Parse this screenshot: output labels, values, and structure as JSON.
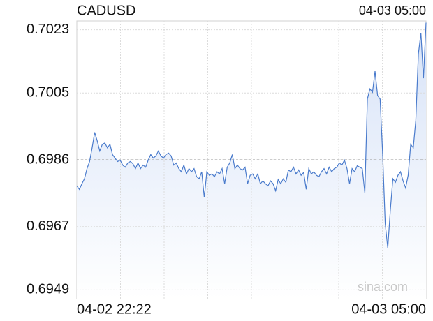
{
  "chart_data": {
    "type": "line",
    "title": "CADUSD",
    "timestamp": "04-03 05:00",
    "watermark": "sina.com",
    "categories": [
      "04-02 22:22",
      null,
      null,
      null,
      null,
      null,
      null,
      null,
      null,
      null,
      null,
      null,
      null,
      null,
      null,
      null,
      null,
      null,
      null,
      null,
      null,
      null,
      null,
      null,
      null,
      null,
      null,
      null,
      null,
      null,
      null,
      null,
      null,
      null,
      null,
      null,
      null,
      null,
      null,
      null,
      null,
      null,
      null,
      null,
      null,
      null,
      null,
      null,
      null,
      null,
      null,
      null,
      null,
      null,
      null,
      null,
      null,
      null,
      null,
      null,
      null,
      null,
      null,
      null,
      null,
      null,
      null,
      null,
      null,
      null,
      null,
      null,
      null,
      null,
      null,
      null,
      null,
      null,
      null,
      null,
      null,
      null,
      null,
      null,
      null,
      null,
      null,
      null,
      null,
      null,
      null,
      null,
      null,
      null,
      null,
      null,
      null,
      null,
      null,
      null,
      null,
      null,
      null,
      null,
      null,
      null,
      null,
      null,
      null,
      null,
      null,
      null,
      null,
      null,
      null,
      null,
      null,
      null,
      null,
      null,
      null,
      null,
      null,
      null,
      null,
      null,
      null,
      null,
      null,
      null,
      null,
      null,
      null,
      null,
      null,
      null,
      null,
      "04-03 05:00"
    ],
    "series": [
      {
        "name": "CADUSD",
        "color": "#4a7bcc",
        "values": [
          0.69786,
          0.69776,
          0.69792,
          0.69806,
          0.69835,
          0.69855,
          0.69894,
          0.69938,
          0.69914,
          0.69885,
          0.69904,
          0.69908,
          0.69894,
          0.69904,
          0.69875,
          0.69865,
          0.69855,
          0.69859,
          0.69845,
          0.69839,
          0.69851,
          0.69855,
          0.69849,
          0.69835,
          0.69851,
          0.69835,
          0.69845,
          0.69839,
          0.69859,
          0.69875,
          0.69865,
          0.69871,
          0.69885,
          0.69871,
          0.69865,
          0.69875,
          0.69879,
          0.69871,
          0.69845,
          0.69851,
          0.69835,
          0.69826,
          0.69845,
          0.6982,
          0.69835,
          0.69826,
          0.69835,
          0.69812,
          0.69806,
          0.69826,
          0.69753,
          0.69826,
          0.69816,
          0.6982,
          0.69812,
          0.69826,
          0.6982,
          0.69835,
          0.69792,
          0.69839,
          0.69851,
          0.69875,
          0.69835,
          0.69845,
          0.69835,
          0.69831,
          0.69839,
          0.69792,
          0.69816,
          0.6982,
          0.69806,
          0.6982,
          0.69792,
          0.698,
          0.69792,
          0.69786,
          0.698,
          0.69792,
          0.69772,
          0.69804,
          0.69792,
          0.69806,
          0.69796,
          0.69831,
          0.69826,
          0.69839,
          0.6982,
          0.69831,
          0.69816,
          0.69824,
          0.69776,
          0.69835,
          0.6982,
          0.69826,
          0.69816,
          0.69812,
          0.69826,
          0.69835,
          0.6982,
          0.69839,
          0.69826,
          0.69835,
          0.69839,
          0.69851,
          0.69845,
          0.69859,
          0.69835,
          0.69792,
          0.69835,
          0.69826,
          0.69843,
          0.69839,
          0.69835,
          0.69766,
          0.70033,
          0.70062,
          0.70052,
          0.70112,
          0.70043,
          0.70033,
          0.69875,
          0.69678,
          0.69609,
          0.69717,
          0.69806,
          0.69796,
          0.69816,
          0.69826,
          0.698,
          0.6978,
          0.69816,
          0.69904,
          0.69894,
          0.69973,
          0.70161,
          0.7022,
          0.70092,
          0.7025
        ]
      }
    ],
    "ylim": [
      0.69465,
      0.70255
    ],
    "yticks": [
      0.6949,
      0.6967,
      0.6986,
      0.7005,
      0.7023
    ],
    "reference_line": 0.6986,
    "up_color": "#009900",
    "down_color": "#e60000",
    "grid": true
  }
}
